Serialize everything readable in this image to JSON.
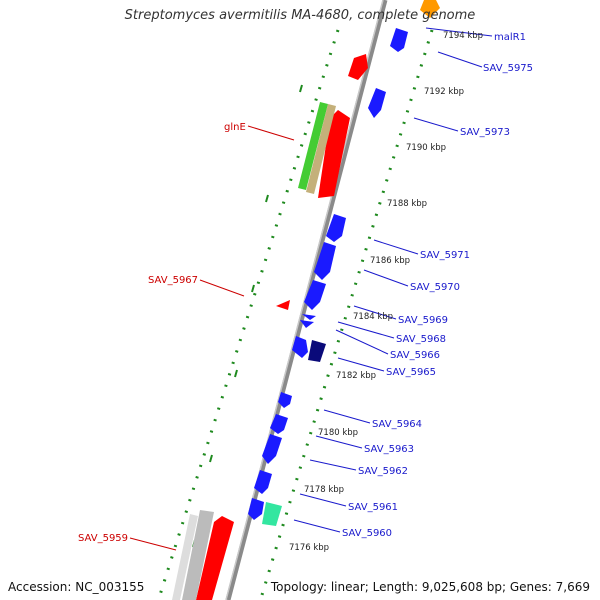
{
  "title": "Streptomyces avermitilis MA-4680, complete genome",
  "footer": {
    "accession": "Accession: NC_003155",
    "summary": "Topology: linear; Length: 9,025,608 bp; Genes: 7,669"
  },
  "colors": {
    "backbone": "#8a8a8a",
    "ruler": "#1f8a1f",
    "blue_gene": "#1a1aff",
    "red_gene": "#ff0000",
    "navy_gene": "#0a0a7a",
    "green_gene": "#44cc33",
    "tan_gene": "#c4b07a",
    "grey_gene": "#bbbbbb",
    "teal_gene": "#33e6a0",
    "orange_gene": "#ff9900",
    "right_label": "#1a1acc",
    "left_label": "#cc0000"
  },
  "kbp_ticks": [
    "7194 kbp",
    "7192 kbp",
    "7190 kbp",
    "7188 kbp",
    "7186 kbp",
    "7184 kbp",
    "7182 kbp",
    "7180 kbp",
    "7178 kbp",
    "7176 kbp"
  ],
  "right_labels": [
    "malR1",
    "SAV_5975",
    "SAV_5973",
    "SAV_5971",
    "SAV_5970",
    "SAV_5969",
    "SAV_5968",
    "SAV_5966",
    "SAV_5965",
    "SAV_5964",
    "SAV_5963",
    "SAV_5962",
    "SAV_5961",
    "SAV_5960"
  ],
  "left_labels": [
    "glnE",
    "SAV_5967",
    "SAV_5959"
  ]
}
